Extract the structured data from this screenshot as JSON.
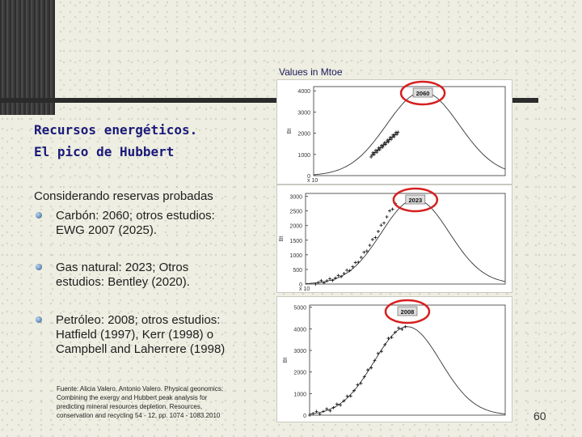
{
  "units_label": "Values in Mtoe",
  "title_lines": [
    "Recursos energéticos.",
    "El pico de Hubbert"
  ],
  "intro": "Considerando reservas probadas",
  "bullets": [
    {
      "lines": [
        "Carbón: 2060; otros estudios:",
        "EWG 2007 (2025)."
      ]
    },
    {
      "lines": [
        "Gas natural: 2023; Otros",
        "estudios: Bentley (2020)."
      ]
    },
    {
      "lines": [
        "Petróleo: 2008; otros estudios:",
        "Hatfield (1997), Kerr (1998) o",
        "Campbell and Laherrere (1998)"
      ]
    }
  ],
  "footnote_lines": [
    "Fuente: Alicia Valero, Antonio Valero. Physical geonomics:",
    "Combining the exergy and Hubbert peak analysis for",
    "predicting mineral resources depletion. Resources,",
    "conservation and recycling 54 - 12, pp. 1074 - 1083.2010"
  ],
  "page_number": "60",
  "colors": {
    "title": "#1a1a7a",
    "highlight_circle": "#d62020",
    "curve": "#333333"
  },
  "chart_data": [
    {
      "type": "line",
      "peak_label": "2060",
      "ylabel": "Bt",
      "yticks": [
        "0",
        "1000",
        "2000",
        "3000",
        "4000"
      ],
      "ylim": [
        0,
        4200
      ],
      "x_note": "x 10",
      "peak_value": 3950,
      "historical_peak_value": 2050
    },
    {
      "type": "line",
      "peak_label": "2023",
      "ylabel": "Bt",
      "yticks": [
        "0",
        "500",
        "1000",
        "1500",
        "2000",
        "2500",
        "3000"
      ],
      "ylim": [
        0,
        3100
      ],
      "x_note": "x 10",
      "peak_value": 2900,
      "historical_peak_value": 2750
    },
    {
      "type": "line",
      "peak_label": "2008",
      "ylabel": "Bt",
      "yticks": [
        "0",
        "1000",
        "2000",
        "3000",
        "4000",
        "5000"
      ],
      "ylim": [
        0,
        5100
      ],
      "x_note": "",
      "peak_value": 4100,
      "historical_peak_value": 4100
    }
  ]
}
